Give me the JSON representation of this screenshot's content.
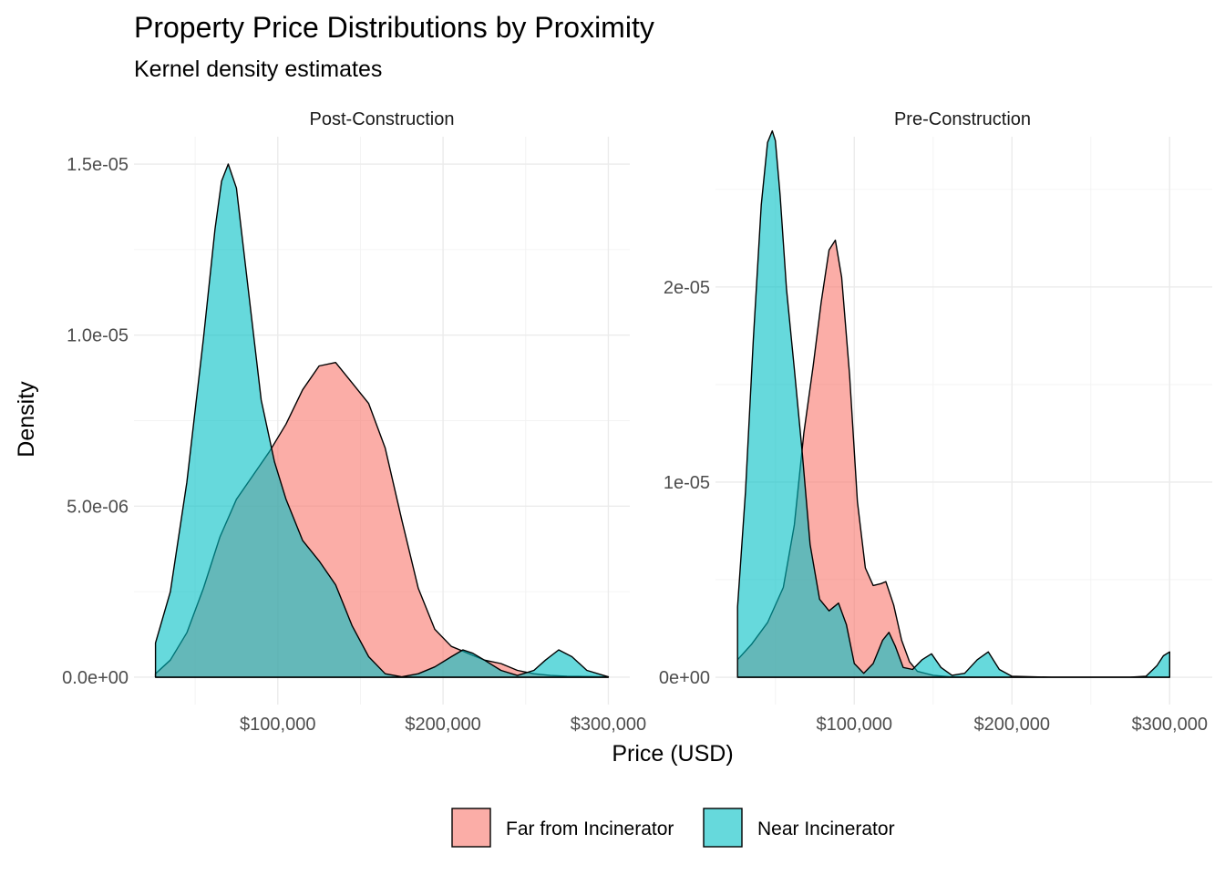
{
  "chart_data": {
    "type": "area",
    "subtype": "density",
    "title": "Property Price Distributions by Proximity",
    "subtitle": "Kernel density estimates",
    "xlabel": "Price (USD)",
    "ylabel": "Density",
    "legend_position": "bottom",
    "grid": true,
    "colors": {
      "Far from Incinerator": "#F8766D",
      "Near Incinerator": "#00BFC4"
    },
    "fill_opacity": 0.6,
    "legend": [
      "Far from Incinerator",
      "Near Incinerator"
    ],
    "panels": [
      {
        "label": "Post-Construction",
        "xlim": [
          13000,
          313000
        ],
        "ylim": [
          -8e-07,
          1.58e-05
        ],
        "x_ticks": [
          100000,
          200000,
          300000
        ],
        "x_tick_labels": [
          "$100,000",
          "$200,000",
          "$300,000"
        ],
        "y_ticks": [
          0,
          5e-06,
          1e-05,
          1.5e-05
        ],
        "y_tick_labels": [
          "0.0e+00",
          "5.0e-06",
          "1.0e-05",
          "1.5e-05"
        ],
        "series": [
          {
            "name": "Far from Incinerator",
            "x": [
              26000,
              35000,
              45000,
              55000,
              65000,
              75000,
              85000,
              95000,
              105000,
              115000,
              125000,
              135000,
              145000,
              155000,
              165000,
              175000,
              185000,
              195000,
              205000,
              215000,
              225000,
              235000,
              245000,
              255000,
              265000,
              275000,
              285000,
              300000
            ],
            "y": [
              1e-07,
              5e-07,
              1.3e-06,
              2.6e-06,
              4.1e-06,
              5.2e-06,
              5.9e-06,
              6.6e-06,
              7.4e-06,
              8.4e-06,
              9.1e-06,
              9.2e-06,
              8.6e-06,
              8e-06,
              6.7e-06,
              4.6e-06,
              2.6e-06,
              1.4e-06,
              9e-07,
              7e-07,
              5e-07,
              4e-07,
              2e-07,
              1e-07,
              5e-08,
              3e-08,
              2e-08,
              1e-08
            ]
          },
          {
            "name": "Near Incinerator",
            "x": [
              26000,
              35000,
              45000,
              55000,
              62000,
              66000,
              70000,
              75000,
              82000,
              90000,
              98000,
              105000,
              115000,
              125000,
              135000,
              145000,
              155000,
              165000,
              175000,
              185000,
              195000,
              205000,
              212000,
              218000,
              225000,
              235000,
              245000,
              255000,
              262000,
              270000,
              278000,
              287000,
              300000
            ],
            "y": [
              1e-06,
              2.5e-06,
              5.7e-06,
              9.9e-06,
              1.31e-05,
              1.45e-05,
              1.5e-05,
              1.43e-05,
              1.14e-05,
              8.1e-06,
              6.3e-06,
              5.2e-06,
              4e-06,
              3.4e-06,
              2.7e-06,
              1.5e-06,
              6e-07,
              1e-07,
              1e-08,
              1e-07,
              3e-07,
              6e-07,
              8e-07,
              7e-07,
              5e-07,
              2e-07,
              5e-08,
              2e-07,
              5e-07,
              8e-07,
              6e-07,
              2e-07,
              1e-08
            ]
          }
        ]
      },
      {
        "label": "Pre-Construction",
        "xlim": [
          12000,
          327000
        ],
        "ylim": [
          -1.4e-06,
          2.77e-05
        ],
        "x_ticks": [
          100000,
          200000,
          300000
        ],
        "x_tick_labels": [
          "$100,000",
          "$200,000",
          "$300,000"
        ],
        "y_ticks": [
          0,
          1e-05,
          2e-05
        ],
        "y_tick_labels": [
          "0e+00",
          "1e-05",
          "2e-05"
        ],
        "series": [
          {
            "name": "Far from Incinerator",
            "x": [
              26000,
              35000,
              45000,
              55000,
              62000,
              68000,
              74000,
              79000,
              84000,
              88000,
              92000,
              97000,
              102000,
              107000,
              112000,
              117000,
              120000,
              125000,
              130000,
              135000,
              140000,
              150000,
              160000,
              170000,
              180000,
              190000,
              200000,
              225000,
              250000,
              275000,
              300000
            ],
            "y": [
              9e-07,
              1.7e-06,
              2.8e-06,
              4.6e-06,
              7.8e-06,
              1.25e-05,
              1.6e-05,
              1.92e-05,
              2.19e-05,
              2.24e-05,
              2.05e-05,
              1.55e-05,
              9e-06,
              5.6e-06,
              4.7e-06,
              4.8e-06,
              4.9e-06,
              3.7e-06,
              1.9e-06,
              8e-07,
              3e-07,
              1e-07,
              3e-08,
              1e-08,
              0,
              0,
              0,
              0,
              0,
              0,
              0
            ]
          },
          {
            "name": "Near Incinerator",
            "x": [
              26000,
              31000,
              36000,
              41000,
              45000,
              48000,
              50000,
              53000,
              57000,
              62000,
              67000,
              72000,
              78000,
              84000,
              90000,
              95000,
              100000,
              106000,
              112000,
              118000,
              122000,
              126000,
              131000,
              137000,
              143000,
              149000,
              155000,
              162000,
              170000,
              178000,
              185000,
              192000,
              200000,
              225000,
              250000,
              275000,
              285000,
              292000,
              296000,
              300000
            ],
            "y": [
              3.6e-06,
              9.5e-06,
              1.73e-05,
              2.42e-05,
              2.74e-05,
              2.8e-05,
              2.75e-05,
              2.47e-05,
              1.99e-05,
              1.58e-05,
              1.15e-05,
              6.8e-06,
              4e-06,
              3.4e-06,
              3.8e-06,
              2.7e-06,
              7e-07,
              2e-07,
              7e-07,
              1.9e-06,
              2.3e-06,
              1.6e-06,
              5e-07,
              4e-07,
              9e-07,
              1.2e-06,
              5e-07,
              1e-07,
              2e-07,
              9e-07,
              1.3e-06,
              4e-07,
              5e-08,
              0,
              0,
              0,
              5e-08,
              6e-07,
              1.1e-06,
              1.3e-06
            ]
          }
        ]
      }
    ]
  }
}
